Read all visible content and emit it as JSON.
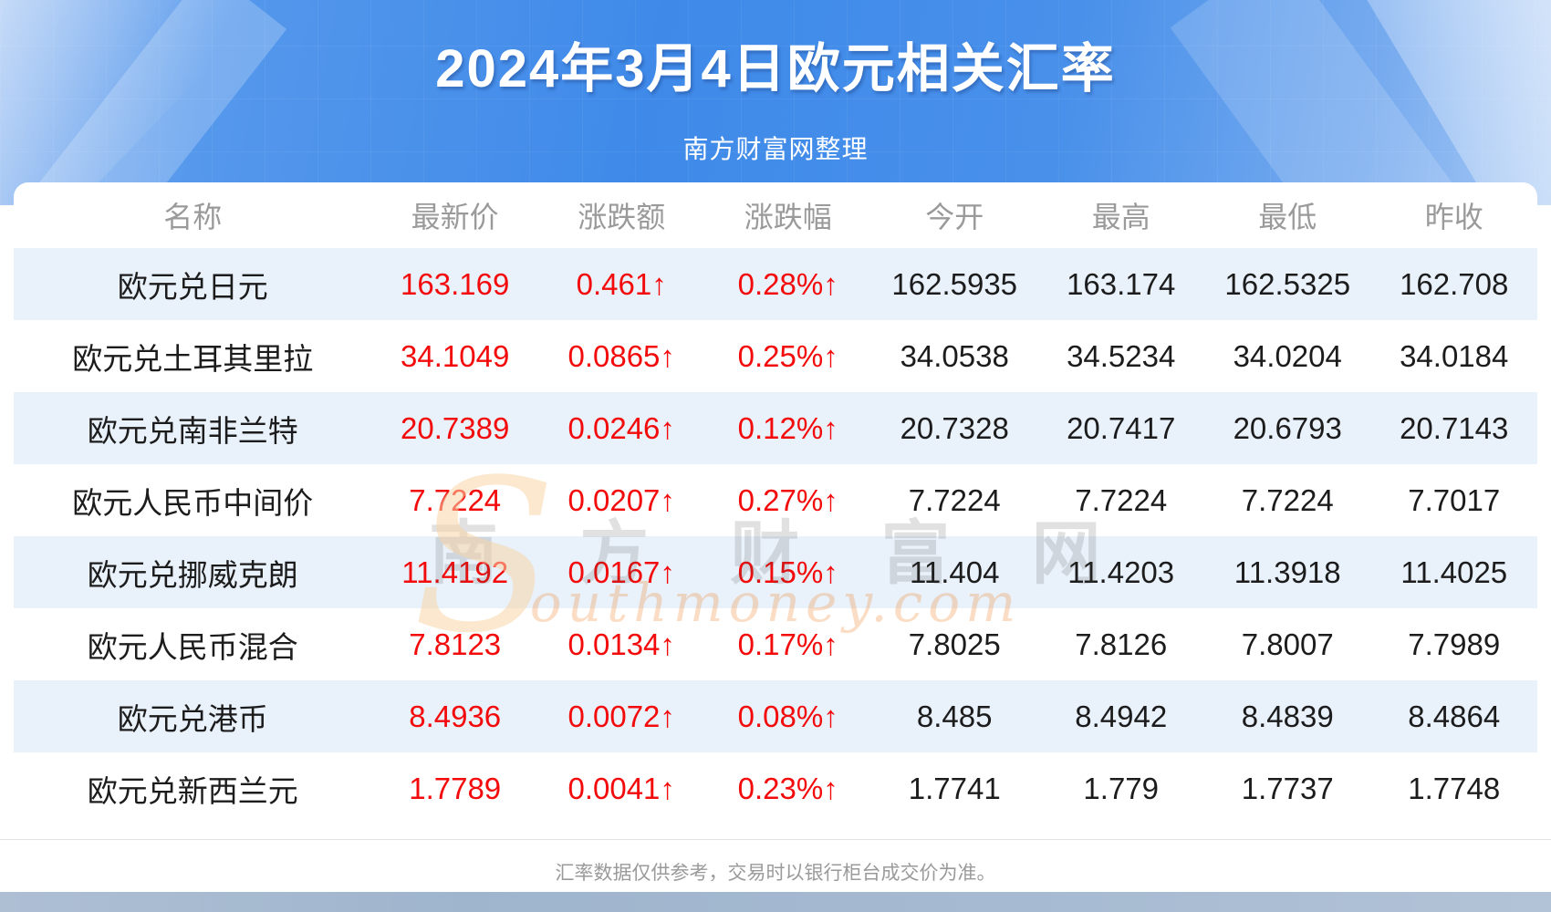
{
  "banner": {
    "title": "2024年3月4日欧元相关汇率",
    "subtitle": "南方财富网整理"
  },
  "table": {
    "headers": [
      "名称",
      "最新价",
      "涨跌额",
      "涨跌幅",
      "今开",
      "最高",
      "最低",
      "昨收"
    ],
    "rows": [
      [
        "欧元兑日元",
        "163.169",
        "0.461↑",
        "0.28%↑",
        "162.5935",
        "163.174",
        "162.5325",
        "162.708"
      ],
      [
        "欧元兑土耳其里拉",
        "34.1049",
        "0.0865↑",
        "0.25%↑",
        "34.0538",
        "34.5234",
        "34.0204",
        "34.0184"
      ],
      [
        "欧元兑南非兰特",
        "20.7389",
        "0.0246↑",
        "0.12%↑",
        "20.7328",
        "20.7417",
        "20.6793",
        "20.7143"
      ],
      [
        "欧元人民币中间价",
        "7.7224",
        "0.0207↑",
        "0.27%↑",
        "7.7224",
        "7.7224",
        "7.7224",
        "7.7017"
      ],
      [
        "欧元兑挪威克朗",
        "11.4192",
        "0.0167↑",
        "0.15%↑",
        "11.404",
        "11.4203",
        "11.3918",
        "11.4025"
      ],
      [
        "欧元人民币混合",
        "7.8123",
        "0.0134↑",
        "0.17%↑",
        "7.8025",
        "7.8126",
        "7.8007",
        "7.7989"
      ],
      [
        "欧元兑港币",
        "8.4936",
        "0.0072↑",
        "0.08%↑",
        "8.485",
        "8.4942",
        "8.4839",
        "8.4864"
      ],
      [
        "欧元兑新西兰元",
        "1.7789",
        "0.0041↑",
        "0.23%↑",
        "1.7741",
        "1.779",
        "1.7737",
        "1.7748"
      ]
    ]
  },
  "watermark": {
    "cn": "南 方 财 富 网",
    "s": "S",
    "en": "outhmoney.com"
  },
  "footer": {
    "note": "汇率数据仅供参考，交易时以银行柜台成交价为准。"
  },
  "colors": {
    "banner_blue": "#3f8ae9",
    "value_red": "#f30b0b",
    "row_stripe": "#e9f1fb",
    "header_gray": "#9a9a9a",
    "bottom_bar": "#a7bbd2"
  }
}
